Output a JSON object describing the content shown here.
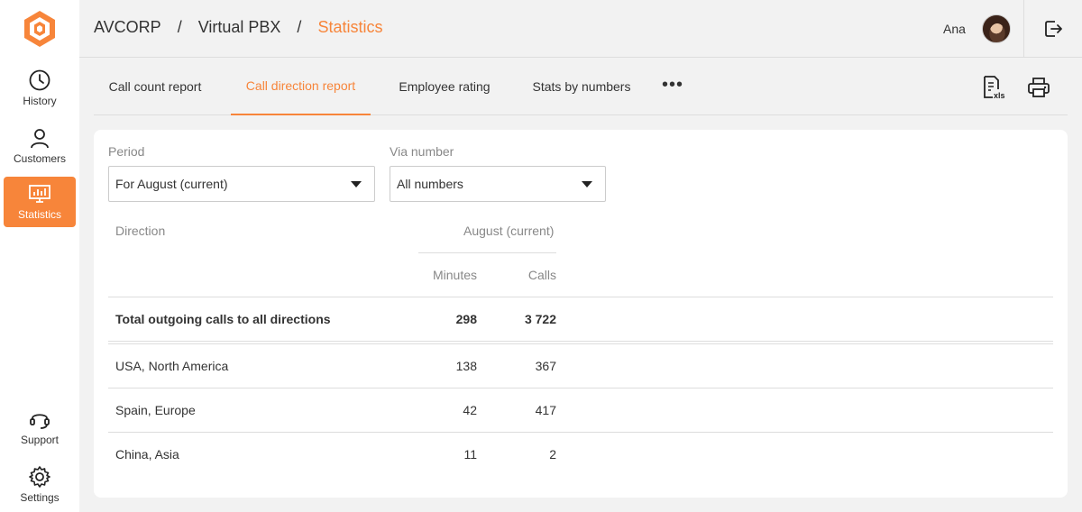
{
  "sidebar": {
    "items": [
      {
        "label": "History",
        "icon": "clock-icon"
      },
      {
        "label": "Customers",
        "icon": "person-icon"
      },
      {
        "label": "Statistics",
        "icon": "chart-monitor-icon"
      },
      {
        "label": "Support",
        "icon": "headset-icon"
      },
      {
        "label": "Settings",
        "icon": "gear-icon"
      }
    ],
    "active": "Statistics"
  },
  "header": {
    "breadcrumb": [
      "AVCORP",
      "Virtual PBX",
      "Statistics"
    ],
    "separator": "/",
    "user_name": "Ana"
  },
  "tabs": [
    {
      "label": "Call count report"
    },
    {
      "label": "Call direction report"
    },
    {
      "label": "Employee rating"
    },
    {
      "label": "Stats by numbers"
    }
  ],
  "active_tab": "Call direction report",
  "toolbar": {
    "more_label": "•••",
    "export_icon": "xls-file-icon",
    "print_icon": "printer-icon"
  },
  "filters": {
    "period": {
      "label": "Period",
      "value": "For August (current)"
    },
    "via_number": {
      "label": "Via number",
      "value": "All numbers"
    }
  },
  "table": {
    "direction_header": "Direction",
    "period_header": "August (current)",
    "minutes_header": "Minutes",
    "calls_header": "Calls",
    "total_row": {
      "direction": "Total outgoing calls to all directions",
      "minutes": "298",
      "calls": "3 722"
    },
    "rows": [
      {
        "direction": "USA, North America",
        "minutes": "138",
        "calls": "367"
      },
      {
        "direction": "Spain, Europe",
        "minutes": "42",
        "calls": "417"
      },
      {
        "direction": "China, Asia",
        "minutes": "11",
        "calls": "2"
      }
    ]
  },
  "colors": {
    "accent": "#f7853a",
    "background": "#f2f2f2",
    "card": "#ffffff"
  }
}
